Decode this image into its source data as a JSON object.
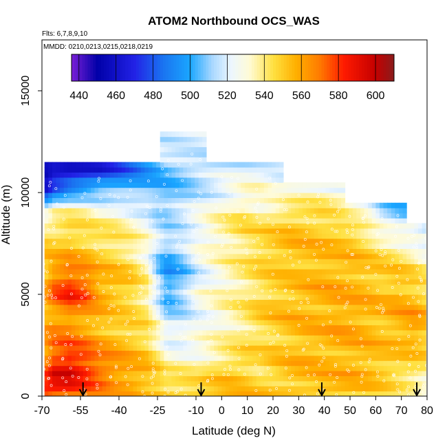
{
  "chart_data": {
    "type": "heatmap",
    "title": "ATOM2 Northbound OCS_WAS",
    "subtitle_flights": "Flts: 6,7,8,9,10",
    "subtitle_dates": "MMDD: 0210,0213,0215,0218,0219",
    "xlabel": "Latitude (deg N)",
    "ylabel": "Altitude (m)",
    "xlim": [
      -70,
      80
    ],
    "ylim": [
      0,
      17500
    ],
    "x_ticks": [
      -70,
      -55,
      -40,
      -25,
      -10,
      0,
      10,
      20,
      30,
      40,
      50,
      60,
      70,
      80
    ],
    "x_tick_labels": [
      "-70",
      "-55",
      "-40",
      "-25",
      "-10",
      "0",
      "10",
      "20",
      "30",
      "40",
      "50",
      "60",
      "70",
      "80"
    ],
    "y_ticks": [
      0,
      5000,
      10000,
      15000
    ],
    "y_tick_labels": [
      "0",
      "5000",
      "10000",
      "15000"
    ],
    "colorbar": {
      "min": 436,
      "max": 610,
      "ticks": [
        440,
        460,
        480,
        500,
        520,
        540,
        560,
        580,
        600
      ],
      "tick_labels": [
        "440",
        "460",
        "480",
        "500",
        "520",
        "540",
        "560",
        "580",
        "600"
      ],
      "placement": "top"
    },
    "color_stops": [
      {
        "v": 436,
        "c": "#7a1fd6"
      },
      {
        "v": 450,
        "c": "#0000a8"
      },
      {
        "v": 470,
        "c": "#2222e6"
      },
      {
        "v": 485,
        "c": "#1a72f0"
      },
      {
        "v": 500,
        "c": "#1aa6ff"
      },
      {
        "v": 512,
        "c": "#a9d8ff"
      },
      {
        "v": 522,
        "c": "#ecf6ff"
      },
      {
        "v": 532,
        "c": "#fffbd6"
      },
      {
        "v": 545,
        "c": "#ffe040"
      },
      {
        "v": 557,
        "c": "#ffb000"
      },
      {
        "v": 570,
        "c": "#ff7a00"
      },
      {
        "v": 583,
        "c": "#ff1a00"
      },
      {
        "v": 600,
        "c": "#c40000"
      },
      {
        "v": 610,
        "c": "#8a1c1c"
      }
    ],
    "arrow_latitudes": [
      -54,
      -8,
      39,
      76
    ],
    "profiles": [
      {
        "lat": -69,
        "v": [
          585,
          575,
          565,
          560,
          558,
          560,
          555,
          550,
          545,
          520,
          470,
          450,
          null
        ]
      },
      {
        "lat": -66,
        "v": [
          580,
          590,
          575,
          565,
          560,
          575,
          565,
          550,
          545,
          530,
          485,
          455,
          null
        ]
      },
      {
        "lat": -60,
        "v": [
          575,
          595,
          580,
          565,
          565,
          585,
          570,
          555,
          548,
          535,
          495,
          455,
          null
        ]
      },
      {
        "lat": -54,
        "v": [
          570,
          585,
          575,
          560,
          560,
          580,
          565,
          552,
          545,
          535,
          500,
          460,
          null
        ]
      },
      {
        "lat": -48,
        "v": [
          565,
          575,
          565,
          555,
          555,
          560,
          555,
          548,
          542,
          530,
          505,
          465,
          null
        ]
      },
      {
        "lat": -42,
        "v": [
          560,
          565,
          560,
          552,
          548,
          555,
          552,
          545,
          540,
          530,
          505,
          475,
          null
        ]
      },
      {
        "lat": -36,
        "v": [
          560,
          560,
          555,
          550,
          545,
          550,
          548,
          540,
          535,
          525,
          505,
          485,
          null
        ]
      },
      {
        "lat": -30,
        "v": [
          555,
          555,
          550,
          545,
          540,
          540,
          535,
          530,
          528,
          520,
          505,
          495,
          null
        ]
      },
      {
        "lat": -26,
        "v": [
          555,
          550,
          540,
          535,
          525,
          520,
          510,
          515,
          520,
          512,
          505,
          500,
          null
        ]
      },
      {
        "lat": -22,
        "v": [
          552,
          540,
          530,
          520,
          510,
          500,
          495,
          505,
          515,
          510,
          505,
          505,
          520
        ]
      },
      {
        "lat": -16,
        "v": [
          550,
          540,
          528,
          520,
          515,
          510,
          505,
          512,
          520,
          515,
          510,
          508,
          520
        ]
      },
      {
        "lat": -10,
        "v": [
          550,
          540,
          530,
          525,
          525,
          525,
          520,
          525,
          528,
          522,
          515,
          512,
          520
        ]
      },
      {
        "lat": -4,
        "v": [
          550,
          548,
          535,
          530,
          530,
          530,
          528,
          530,
          535,
          528,
          520,
          515,
          null
        ]
      },
      {
        "lat": 2,
        "v": [
          552,
          552,
          540,
          535,
          535,
          535,
          535,
          535,
          540,
          535,
          525,
          518,
          null
        ]
      },
      {
        "lat": 8,
        "v": [
          552,
          550,
          545,
          540,
          540,
          540,
          540,
          540,
          545,
          540,
          530,
          520,
          null
        ]
      },
      {
        "lat": 14,
        "v": [
          550,
          545,
          545,
          545,
          548,
          545,
          545,
          548,
          545,
          535,
          530,
          522,
          null
        ]
      },
      {
        "lat": 20,
        "v": [
          548,
          550,
          550,
          548,
          552,
          550,
          548,
          552,
          548,
          540,
          525,
          522,
          null
        ]
      },
      {
        "lat": 26,
        "v": [
          550,
          555,
          552,
          552,
          555,
          552,
          550,
          555,
          552,
          545,
          525,
          null,
          null
        ]
      },
      {
        "lat": 32,
        "v": [
          552,
          555,
          555,
          555,
          555,
          555,
          552,
          555,
          552,
          545,
          528,
          null,
          null
        ]
      },
      {
        "lat": 38,
        "v": [
          555,
          555,
          555,
          555,
          555,
          557,
          555,
          555,
          550,
          545,
          530,
          null,
          null
        ]
      },
      {
        "lat": 44,
        "v": [
          555,
          555,
          555,
          558,
          558,
          558,
          555,
          552,
          552,
          540,
          530,
          null,
          null
        ]
      },
      {
        "lat": 50,
        "v": [
          552,
          557,
          555,
          558,
          558,
          556,
          555,
          552,
          550,
          530,
          null,
          null,
          null
        ]
      },
      {
        "lat": 56,
        "v": [
          550,
          555,
          555,
          555,
          555,
          555,
          552,
          548,
          540,
          525,
          null,
          null,
          null
        ]
      },
      {
        "lat": 62,
        "v": [
          545,
          552,
          552,
          552,
          555,
          552,
          550,
          545,
          530,
          510,
          null,
          null,
          null
        ]
      },
      {
        "lat": 68,
        "v": [
          540,
          548,
          550,
          555,
          558,
          555,
          550,
          540,
          525,
          505,
          null,
          null,
          null
        ]
      },
      {
        "lat": 74,
        "v": [
          535,
          545,
          550,
          560,
          560,
          552,
          545,
          535,
          520,
          null,
          null,
          null,
          null
        ]
      },
      {
        "lat": 78,
        "v": [
          530,
          540,
          548,
          555,
          555,
          548,
          540,
          530,
          515,
          null,
          null,
          null,
          null
        ]
      }
    ]
  }
}
